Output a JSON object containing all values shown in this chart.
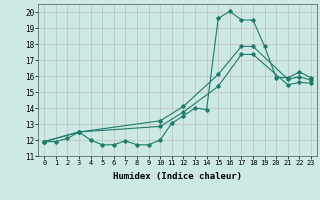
{
  "xlabel": "Humidex (Indice chaleur)",
  "background_color": "#cce9e4",
  "grid_color": "#c0c0c0",
  "line_color": "#1e7b6a",
  "xlim": [
    -0.5,
    23.5
  ],
  "ylim": [
    11,
    20.5
  ],
  "yticks": [
    11,
    12,
    13,
    14,
    15,
    16,
    17,
    18,
    19,
    20
  ],
  "xticks": [
    0,
    1,
    2,
    3,
    4,
    5,
    6,
    7,
    8,
    9,
    10,
    11,
    12,
    13,
    14,
    15,
    16,
    17,
    18,
    19,
    20,
    21,
    22,
    23
  ],
  "xtick_labels": [
    "0",
    "1",
    "2",
    "3",
    "4",
    "5",
    "6",
    "7",
    "8",
    "9",
    "10",
    "11",
    "12",
    "13",
    "14",
    "15",
    "16",
    "17",
    "18",
    "19",
    "20",
    "21",
    "22",
    "23"
  ],
  "s1_x": [
    0,
    1,
    2,
    3,
    4,
    5,
    6,
    7,
    8,
    9,
    10,
    11,
    12,
    13,
    14,
    15,
    16,
    17,
    18,
    19,
    20,
    21,
    22,
    23
  ],
  "s1_y": [
    11.9,
    11.9,
    12.1,
    12.5,
    12.0,
    11.7,
    11.7,
    11.95,
    11.7,
    11.7,
    12.0,
    13.05,
    13.5,
    14.0,
    13.9,
    19.6,
    20.05,
    19.5,
    19.5,
    17.85,
    15.9,
    15.9,
    16.25,
    15.9
  ],
  "s2_x": [
    0,
    3,
    10,
    12,
    15,
    17,
    18,
    21,
    22,
    23
  ],
  "s2_y": [
    11.9,
    12.5,
    13.2,
    14.1,
    16.1,
    17.85,
    17.85,
    15.8,
    15.95,
    15.75
  ],
  "s3_x": [
    0,
    3,
    10,
    12,
    15,
    17,
    18,
    21,
    22,
    23
  ],
  "s3_y": [
    11.9,
    12.5,
    12.85,
    13.75,
    15.35,
    17.35,
    17.35,
    15.45,
    15.6,
    15.55
  ]
}
